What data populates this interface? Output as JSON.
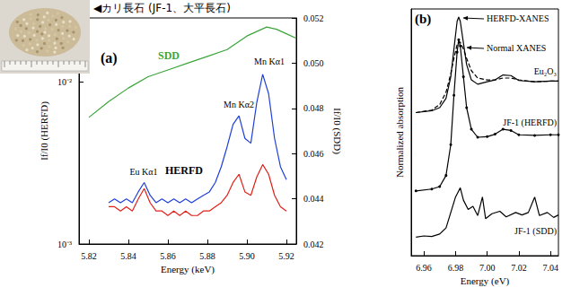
{
  "caption": "◀カリ長石 (JF-1、大平長石)",
  "chart_data": [
    {
      "type": "line",
      "title": "(a)",
      "x_label": "Energy (keV)",
      "y_label": "If/I0 (HERFD)",
      "y2_label": "If/I0 (SDD)",
      "log": "y",
      "grid": false,
      "xlim": [
        5.815,
        5.925
      ],
      "xticks": [
        5.82,
        5.84,
        5.86,
        5.88,
        {
          "value": 5.9,
          "label": "5.90"
        },
        5.92
      ],
      "ylim": [
        0.001,
        0.025
      ],
      "yticks": [
        {
          "value": 0.001,
          "label": "10⁻³"
        },
        {
          "value": 0.01,
          "label": "10⁻²"
        }
      ],
      "y2lim": [
        0.042,
        0.052
      ],
      "y2ticks": [
        0.042,
        0.044,
        0.046,
        0.048,
        {
          "value": 0.05,
          "label": "0.050"
        },
        0.052
      ],
      "annotations": [
        "HERFD",
        "Eu Kα1",
        "Mn Kα2",
        "Mn Kα1"
      ],
      "series": [
        {
          "name": "SDD",
          "color": "#3aa63a",
          "axis": "y2",
          "x": [
            5.82,
            5.83,
            5.84,
            5.85,
            5.86,
            5.87,
            5.88,
            5.89,
            5.895,
            5.9,
            5.905,
            5.91,
            5.915,
            5.92,
            5.925
          ],
          "values": [
            0.0476,
            0.0483,
            0.0489,
            0.0494,
            0.0497,
            0.05,
            0.0503,
            0.0506,
            0.0509,
            0.0512,
            0.0514,
            0.0516,
            0.0515,
            0.0513,
            0.0511
          ]
        },
        {
          "color": "#1f3fd8",
          "x": [
            5.83,
            5.833,
            5.836,
            5.839,
            5.842,
            5.845,
            5.848,
            5.851,
            5.854,
            5.857,
            5.86,
            5.863,
            5.866,
            5.869,
            5.872,
            5.875,
            5.878,
            5.881,
            5.884,
            5.887,
            5.89,
            5.893,
            5.896,
            5.899,
            5.902,
            5.905,
            5.908,
            5.911,
            5.914,
            5.917,
            5.92
          ],
          "values": [
            0.0018,
            0.0019,
            0.0018,
            0.0019,
            0.0018,
            0.0021,
            0.0024,
            0.002,
            0.0018,
            0.0019,
            0.0018,
            0.0019,
            0.0018,
            0.0019,
            0.0018,
            0.0019,
            0.002,
            0.0021,
            0.0024,
            0.003,
            0.004,
            0.0055,
            0.0062,
            0.0045,
            0.0042,
            0.0075,
            0.0112,
            0.0085,
            0.0045,
            0.003,
            0.0025
          ]
        },
        {
          "color": "#e0201b",
          "x": [
            5.83,
            5.833,
            5.836,
            5.839,
            5.842,
            5.845,
            5.848,
            5.851,
            5.854,
            5.857,
            5.86,
            5.863,
            5.866,
            5.869,
            5.872,
            5.875,
            5.878,
            5.881,
            5.884,
            5.887,
            5.89,
            5.893,
            5.896,
            5.899,
            5.902,
            5.905,
            5.908,
            5.911,
            5.914,
            5.917,
            5.92
          ],
          "values": [
            0.0017,
            0.0017,
            0.0016,
            0.0017,
            0.0016,
            0.0019,
            0.0022,
            0.0018,
            0.0016,
            0.0016,
            0.0015,
            0.0016,
            0.0015,
            0.0016,
            0.0015,
            0.0015,
            0.0016,
            0.0016,
            0.0017,
            0.0018,
            0.002,
            0.0024,
            0.0027,
            0.0021,
            0.002,
            0.0026,
            0.0031,
            0.0027,
            0.002,
            0.0017,
            0.0016
          ]
        }
      ]
    },
    {
      "type": "line",
      "title": "(b)",
      "x_label": "Energy (eV)",
      "y_label": "Normalized absorption",
      "grid": false,
      "tick_labels": "x",
      "xlim": [
        6.952,
        7.045
      ],
      "xticks": [
        6.96,
        6.98,
        {
          "value": 7,
          "label": "7.00"
        },
        7.02,
        7.04
      ],
      "ylim": [
        0,
        4
      ],
      "annotations": [
        "HERFD-XANES"
      ],
      "series": [
        {
          "name": "Eu₂O₃",
          "color": "#000000",
          "line_style": "solid",
          "x": [
            6.955,
            6.965,
            6.97,
            6.974,
            6.977,
            6.979,
            6.981,
            6.982,
            6.983,
            6.985,
            6.987,
            6.99,
            6.994,
            7.0,
            7.005,
            7.01,
            7.015,
            7.02,
            7.03,
            7.04,
            7.045
          ],
          "values": [
            2.32,
            2.35,
            2.4,
            2.55,
            2.9,
            3.35,
            3.8,
            3.87,
            3.8,
            3.45,
            3.1,
            2.85,
            2.78,
            2.82,
            2.85,
            2.93,
            2.92,
            2.84,
            2.82,
            2.83,
            2.83
          ]
        },
        {
          "name": "Normal XANES",
          "color": "#000000",
          "line_style": "dashed",
          "x": [
            6.955,
            6.965,
            6.97,
            6.974,
            6.977,
            6.979,
            6.981,
            6.982,
            6.983,
            6.985,
            6.987,
            6.99,
            6.994,
            7.0,
            7.005,
            7.01,
            7.015,
            7.02,
            7.03,
            7.04,
            7.045
          ],
          "values": [
            2.32,
            2.36,
            2.45,
            2.65,
            2.95,
            3.2,
            3.42,
            3.47,
            3.46,
            3.35,
            3.2,
            3.0,
            2.88,
            2.85,
            2.85,
            2.88,
            2.88,
            2.85,
            2.82,
            2.83,
            2.83
          ]
        },
        {
          "name": "JF-1 (HERFD)",
          "color": "#000000",
          "line_style": "solid",
          "marker": "circle",
          "x": [
            6.955,
            6.965,
            6.97,
            6.974,
            6.977,
            6.979,
            6.981,
            6.982,
            6.983,
            6.985,
            6.987,
            6.99,
            6.994,
            7.0,
            7.005,
            7.01,
            7.015,
            7.02,
            7.03,
            7.04,
            7.045
          ],
          "values": [
            1.05,
            1.08,
            1.12,
            1.3,
            1.8,
            2.6,
            3.3,
            3.5,
            3.4,
            2.9,
            2.4,
            2.05,
            1.92,
            1.93,
            1.97,
            2.05,
            2.03,
            1.96,
            1.95,
            1.96,
            1.96
          ]
        },
        {
          "name": "JF-1 (SDD)",
          "color": "#000000",
          "line_style": "solid",
          "x": [
            6.955,
            6.96,
            6.965,
            6.97,
            6.974,
            6.977,
            6.98,
            6.983,
            6.985,
            6.988,
            6.991,
            6.994,
            6.997,
            6.999,
            7.003,
            7.008,
            7.012,
            7.018,
            7.022,
            7.026,
            7.03,
            7.033,
            7.038,
            7.042,
            7.045
          ],
          "values": [
            0.3,
            0.32,
            0.31,
            0.35,
            0.45,
            0.7,
            0.95,
            1.1,
            0.9,
            0.75,
            0.8,
            0.65,
            0.95,
            0.6,
            0.68,
            0.72,
            0.63,
            0.7,
            0.66,
            0.7,
            0.95,
            0.65,
            0.7,
            0.62,
            0.66
          ]
        }
      ]
    }
  ]
}
